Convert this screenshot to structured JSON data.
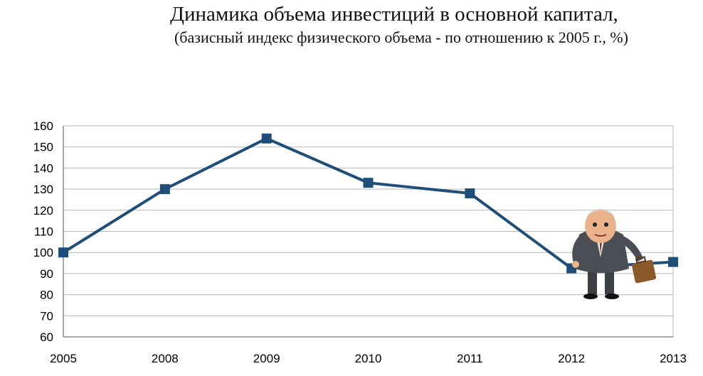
{
  "chart_data": {
    "type": "line",
    "title": "Динамика объема инвестиций в основной капитал,",
    "subtitle": "(базисный индекс физического объема - по отношению к 2005 г., %)",
    "categories": [
      "2005",
      "2008",
      "2009",
      "2010",
      "2011",
      "2012",
      "2013"
    ],
    "series": [
      {
        "values": [
          100,
          130,
          154,
          133,
          128,
          92.5,
          95.5
        ]
      }
    ],
    "ylim": [
      60,
      160
    ],
    "yticks": [
      60,
      70,
      80,
      90,
      100,
      110,
      120,
      130,
      140,
      150,
      160
    ],
    "grid": true,
    "legend": "none",
    "line_color": "#1f4e79",
    "marker": "square",
    "decoration": "cartoon-businessman-icon"
  }
}
